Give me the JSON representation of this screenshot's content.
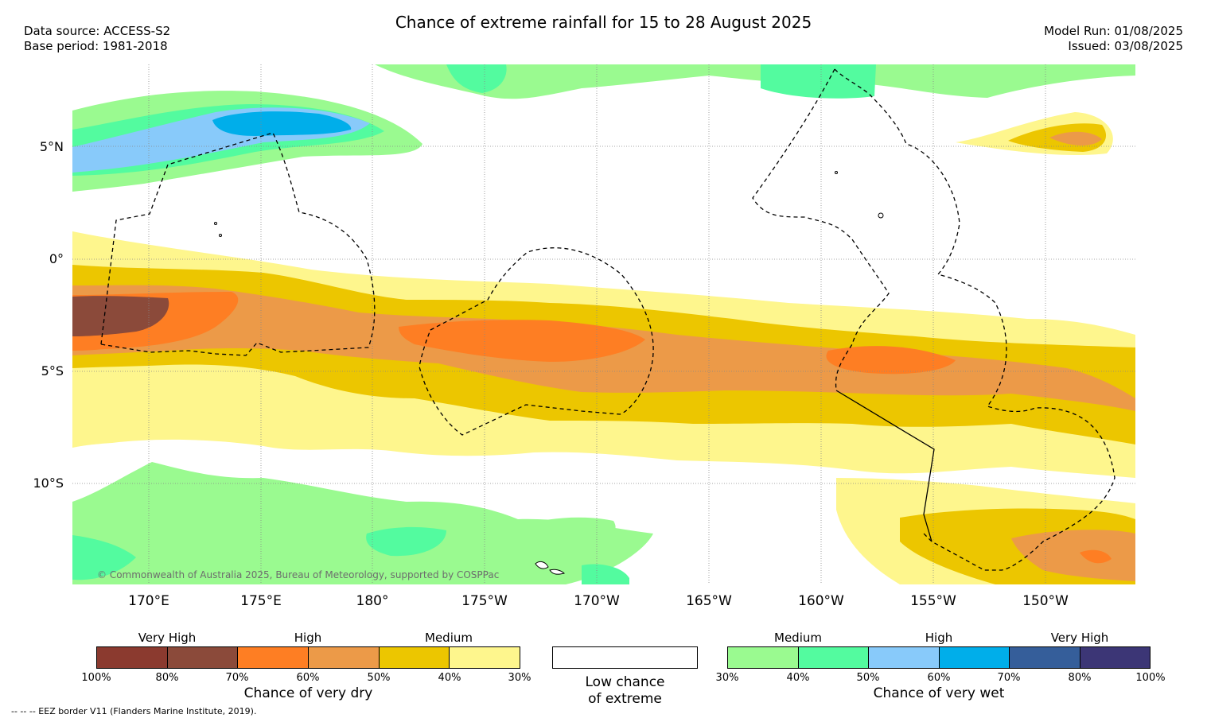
{
  "header": {
    "title": "Chance of extreme rainfall for 15 to 28 August 2025",
    "data_source": "Data source: ACCESS-S2",
    "base_period": "Base period: 1981-2018",
    "model_run": "Model Run: 01/08/2025",
    "issued": "Issued: 03/08/2025"
  },
  "map": {
    "lat_labels": [
      "5°N",
      "0°",
      "5°S",
      "10°S"
    ],
    "lon_labels": [
      "170°E",
      "175°E",
      "180°",
      "175°W",
      "170°W",
      "165°W",
      "160°W",
      "155°W",
      "150°W"
    ],
    "copyright": "© Commonwealth of Australia 2025, Bureau of Meteorology, supported by COSPPac"
  },
  "legend": {
    "dry": {
      "title": "Chance of very dry",
      "groups": [
        "Very High",
        "High",
        "Medium"
      ],
      "ticks": [
        "100%",
        "80%",
        "70%",
        "60%",
        "50%",
        "40%",
        "30%"
      ],
      "colors": [
        "#8b3a2f",
        "#8b4a3a",
        "#fe7e23",
        "#ec9a48",
        "#ecc600",
        "#fef68d"
      ]
    },
    "neutral": {
      "line1": "Low chance",
      "line2": "of extreme",
      "color": "#ffffff"
    },
    "wet": {
      "title": "Chance of very wet",
      "groups": [
        "Medium",
        "High",
        "Very High"
      ],
      "ticks": [
        "30%",
        "40%",
        "50%",
        "60%",
        "70%",
        "80%",
        "100%"
      ],
      "colors": [
        "#9afa90",
        "#53fb9f",
        "#88cafa",
        "#00aeea",
        "#355e9a",
        "#3c3676"
      ]
    }
  },
  "footer": {
    "eez_note": "--  --  -- EEZ border V11 (Flanders Marine Institute, 2019)."
  }
}
